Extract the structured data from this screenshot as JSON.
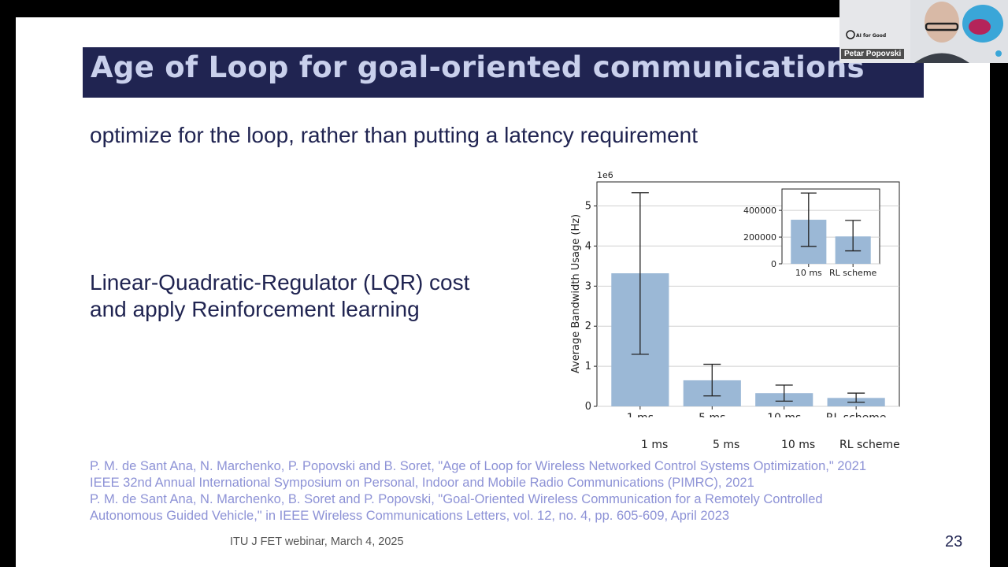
{
  "slide": {
    "title": "Age of Loop for goal-oriented communications",
    "subtitle": "optimize for the loop, rather than putting a latency requirement",
    "body_lines": [
      "Linear-Quadratic-Regulator (LQR) cost",
      "and apply Reinforcement learning"
    ],
    "references": [
      "P. M. de Sant Ana, N. Marchenko, P. Popovski and B. Soret, \"Age of Loop for Wireless Networked Control Systems Optimization,\" 2021",
      "IEEE 32nd Annual International Symposium on Personal, Indoor and Mobile Radio Communications (PIMRC), 2021",
      "P. M. de Sant Ana, N. Marchenko, B. Soret and P. Popovski, \"Goal-Oriented Wireless Communication for a Remotely Controlled",
      "Autonomous Guided Vehicle,\" in IEEE Wireless Communications Letters, vol. 12, no. 4, pp. 605-609, April 2023"
    ],
    "footer": "ITU J FET webinar, March 4, 2025",
    "page_number": "23",
    "duplicate_category_labels": [
      "1 ms",
      "5 ms",
      "10 ms",
      "RL scheme"
    ]
  },
  "video_tile": {
    "participant_name": "Petar Popovski",
    "logo_text": "AI for Good"
  },
  "colors": {
    "title_bar": "#202451",
    "title_text": "#c9d0ec",
    "bar": "#9bb8d6",
    "reference_text": "#8d92d6"
  },
  "chart_data": [
    {
      "type": "bar",
      "categories": [
        "1 ms",
        "5 ms",
        "10 ms",
        "RL scheme"
      ],
      "values": [
        3.32,
        0.65,
        0.33,
        0.21
      ],
      "error_low": [
        1.3,
        0.26,
        0.13,
        0.1
      ],
      "error_high": [
        5.33,
        1.05,
        0.53,
        0.33
      ],
      "ylabel": "Average Bandwidth Usage (Hz)",
      "y_multiplier": "1e6",
      "yticks": [
        "0",
        "1",
        "2",
        "3",
        "4",
        "5"
      ],
      "ylim": [
        0,
        5.6
      ],
      "grid": "horizontal"
    },
    {
      "type": "bar",
      "inset": true,
      "categories": [
        "10 ms",
        "RL scheme"
      ],
      "values": [
        330000,
        205000
      ],
      "error_low": [
        130000,
        97000
      ],
      "error_high": [
        530000,
        325000
      ],
      "yticks": [
        "0",
        "200000",
        "400000"
      ],
      "ylim": [
        0,
        560000
      ],
      "grid": "horizontal"
    }
  ]
}
